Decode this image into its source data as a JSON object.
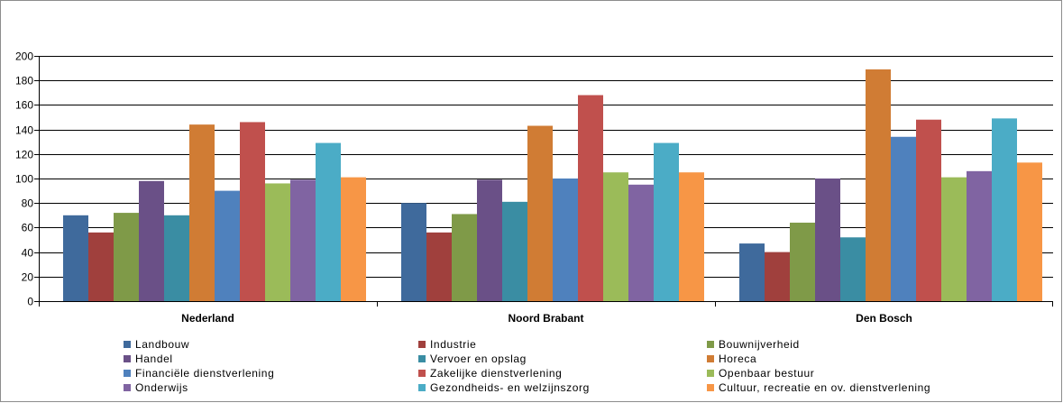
{
  "chart_data": {
    "type": "bar",
    "title": "",
    "xlabel": "",
    "ylabel": "",
    "ylim": [
      0,
      200
    ],
    "yticks": [
      0,
      20,
      40,
      60,
      80,
      100,
      120,
      140,
      160,
      180,
      200
    ],
    "grid": true,
    "legend_position": "bottom",
    "categories": [
      "Nederland",
      "Noord Brabant",
      "Den Bosch"
    ],
    "series": [
      {
        "name": "Landbouw",
        "color": "#3f6a9c",
        "values": [
          70,
          80,
          47
        ]
      },
      {
        "name": "Industrie",
        "color": "#a0403d",
        "values": [
          56,
          56,
          40
        ]
      },
      {
        "name": "Bouwnijverheid",
        "color": "#7f9a48",
        "values": [
          72,
          71,
          64
        ]
      },
      {
        "name": "Handel",
        "color": "#6a5087",
        "values": [
          98,
          99,
          100
        ]
      },
      {
        "name": "Vervoer en opslag",
        "color": "#3a8da3",
        "values": [
          70,
          81,
          52
        ]
      },
      {
        "name": "Horeca",
        "color": "#d07c34",
        "values": [
          144,
          143,
          189
        ]
      },
      {
        "name": "Financiële dienstverlening",
        "color": "#4f81bd",
        "values": [
          90,
          100,
          134
        ]
      },
      {
        "name": "Zakelijke dienstverlening",
        "color": "#c0504d",
        "values": [
          146,
          168,
          148
        ]
      },
      {
        "name": "Openbaar bestuur",
        "color": "#9bbb59",
        "values": [
          96,
          105,
          101
        ]
      },
      {
        "name": "Onderwijs",
        "color": "#8064a2",
        "values": [
          99,
          95,
          106
        ]
      },
      {
        "name": "Gezondheids- en welzijnszorg",
        "color": "#4bacc6",
        "values": [
          129,
          129,
          149
        ]
      },
      {
        "name": "Cultuur, recreatie en ov. dienstverlening",
        "color": "#f79646",
        "values": [
          101,
          105,
          113
        ]
      }
    ]
  }
}
